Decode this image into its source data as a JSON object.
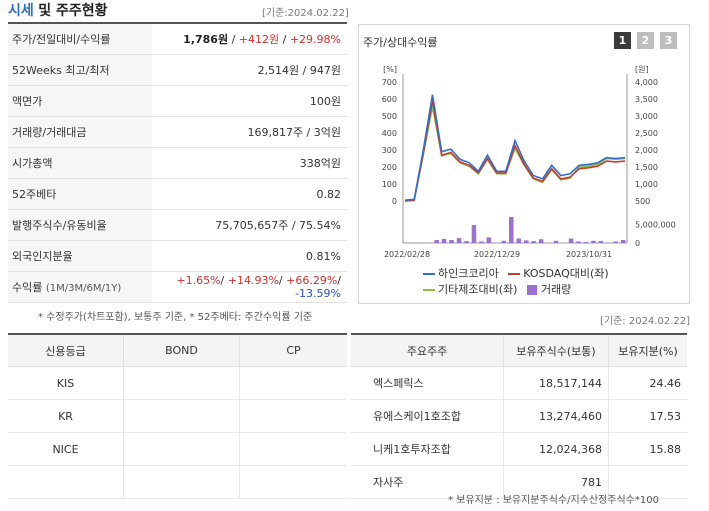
{
  "header": {
    "title_part1": "시세",
    "title_part2": "및 주주현황",
    "date": "[기준:2024.02.22]"
  },
  "info_rows": [
    {
      "label": "주가/전일대비/수익률"
    },
    {
      "label": "52Weeks 최고/최저",
      "value": "2,514원 / 947원"
    },
    {
      "label": "액면가",
      "value": "100원"
    },
    {
      "label": "거래량/거래대금",
      "value": "169,817주 / 3억원"
    },
    {
      "label": "시가총액",
      "value": "338억원"
    },
    {
      "label": "52주베타",
      "value": "0.82"
    },
    {
      "label": "발행주식수/유동비율",
      "value": "75,705,657주 / 75.54%"
    },
    {
      "label": "외국인지분율",
      "value": "0.81%"
    },
    {
      "label": "수익률",
      "sublabel": "(1M/3M/6M/1Y)"
    }
  ],
  "price": {
    "price": "1,786원",
    "sep": " / ",
    "change": "+412원",
    "rate": "+29.98%"
  },
  "returns": {
    "r1m": "+1.65%",
    "r3m": "+14.93%",
    "r6m": "+66.29%",
    "r1y": "-13.59%",
    "sep": "/ "
  },
  "note1": "* 수정주가(차트포함), 보통주 기준, * 52주베타: 주간수익률 기준",
  "chart": {
    "title": "주가/상대수익률",
    "tabs": [
      "1",
      "2",
      "3"
    ],
    "left_unit": "[%]",
    "right_unit": "[원]",
    "volume_tick": "5,000,000",
    "volume_zero": "0",
    "legend": {
      "company": "하인크코리아",
      "kosdaq": "KOSDAQ대비(좌)",
      "industry": "기타제조대비(좌)",
      "volume": "거래량"
    }
  },
  "chart_data": {
    "type": "line",
    "x_labels": [
      "2022/02/28",
      "2022/12/29",
      "2023/10/31"
    ],
    "y_left": {
      "unit": "%",
      "ticks": [
        0,
        100,
        200,
        300,
        400,
        500,
        600,
        700
      ],
      "range": [
        0,
        700
      ]
    },
    "y_right": {
      "unit": "원",
      "ticks": [
        500,
        1000,
        1500,
        2000,
        2500,
        3000,
        3500,
        4000
      ],
      "range": [
        500,
        4000
      ]
    },
    "series": [
      {
        "name": "하인크코리아",
        "color": "#2f6fd0",
        "values": [
          5,
          10,
          300,
          625,
          290,
          305,
          245,
          225,
          175,
          270,
          175,
          175,
          355,
          235,
          150,
          130,
          210,
          150,
          160,
          210,
          215,
          225,
          255,
          250,
          255
        ]
      },
      {
        "name": "KOSDAQ대비(좌)",
        "color": "#c63b2b",
        "values": [
          0,
          5,
          280,
          590,
          270,
          285,
          230,
          210,
          165,
          250,
          165,
          165,
          325,
          215,
          135,
          115,
          190,
          130,
          140,
          190,
          195,
          205,
          235,
          230,
          235
        ]
      },
      {
        "name": "기타제조대비(좌)",
        "color": "#8cbf3f",
        "values": [
          0,
          5,
          275,
          555,
          265,
          280,
          225,
          205,
          160,
          245,
          160,
          160,
          310,
          210,
          130,
          110,
          185,
          125,
          135,
          200,
          205,
          215,
          250,
          245,
          250
        ]
      }
    ],
    "volume": {
      "name": "거래량",
      "color": "#9b6fd3",
      "ylim": [
        0,
        7500000
      ],
      "values": [
        0,
        0,
        0,
        0,
        800000,
        1100000,
        800000,
        1300000,
        500000,
        4800000,
        400000,
        1500000,
        0,
        600000,
        7000000,
        1200000,
        700000,
        500000,
        1000000,
        0,
        600000,
        0,
        1200000,
        400000,
        300000,
        600000,
        500000,
        0,
        400000,
        800000
      ]
    }
  },
  "date2": "[기준: 2024.02.22]",
  "credit": {
    "headers": [
      "신용등급",
      "BOND",
      "CP"
    ],
    "rows": [
      [
        "KIS",
        "",
        ""
      ],
      [
        "KR",
        "",
        ""
      ],
      [
        "NICE",
        "",
        ""
      ],
      [
        "",
        "",
        ""
      ]
    ]
  },
  "shareholders": {
    "headers": [
      "주요주주",
      "보유주식수(보통)",
      "보유지분(%)"
    ],
    "rows": [
      [
        "엑스페릭스",
        "18,517,144",
        "24.46"
      ],
      [
        "유에스케이1호조합",
        "13,274,460",
        "17.53"
      ],
      [
        "니케1호투자조합",
        "12,024,368",
        "15.88"
      ],
      [
        "자사주",
        "781",
        ""
      ]
    ]
  },
  "note2": "* 보유지분 : 보유지분주식수/지수산정주식수*100",
  "colors": {
    "accent_blue": "#2a6fc0",
    "up_red": "#d0302c",
    "down_blue": "#2b4fc4"
  }
}
